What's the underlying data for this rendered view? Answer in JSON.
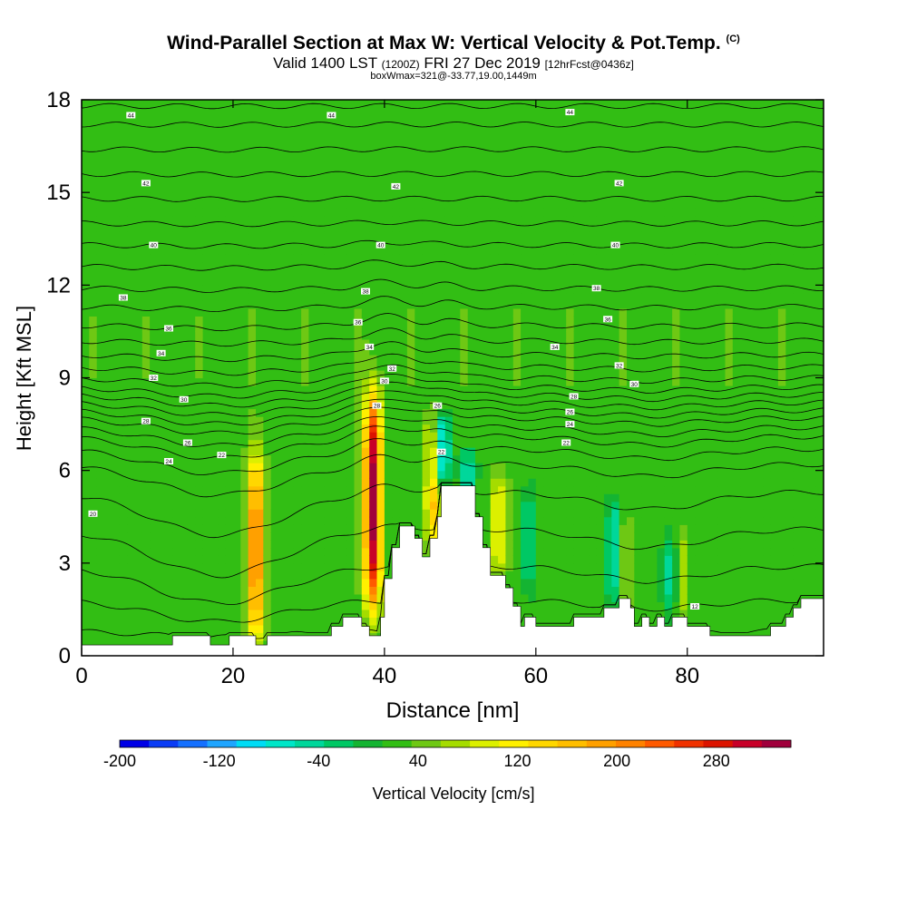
{
  "header": {
    "title": "Wind-Parallel Section at Max W: Vertical Velocity & Pot.Temp.",
    "copyright": "(C)",
    "valid_main": "Valid 1400 LST",
    "valid_utc": "(1200Z)",
    "valid_date": "FRI 27 Dec 2019",
    "forecast": "[12hrFcst@0436z]",
    "box_info": "boxWmax=321@-33.77,19.00,1449m"
  },
  "chart_data": {
    "type": "heatmap",
    "title": "Wind-Parallel Section at Max W: Vertical Velocity & Pot.Temp.",
    "xlabel": "Distance [nm]",
    "ylabel": "Height [Kft MSL]",
    "xlim": [
      0,
      98
    ],
    "ylim": [
      0,
      18
    ],
    "x_ticks": [
      0,
      20,
      40,
      60,
      80
    ],
    "y_ticks": [
      0,
      3,
      6,
      9,
      12,
      15,
      18
    ],
    "background_value": 25,
    "colorbar": {
      "label": "Vertical Velocity [cm/s]",
      "min": -200,
      "max": 340,
      "tick_values": [
        -200,
        -120,
        -40,
        40,
        120,
        200,
        280
      ],
      "colors": [
        "#0000e6",
        "#0a3cf5",
        "#1470ff",
        "#1ea5ff",
        "#00dcf5",
        "#00e6c8",
        "#00d79b",
        "#00c864",
        "#14b432",
        "#32be14",
        "#6ec814",
        "#a5dc00",
        "#dcf000",
        "#fff000",
        "#ffd700",
        "#ffbe00",
        "#ffa000",
        "#ff8200",
        "#ff5a00",
        "#f03200",
        "#dc1400",
        "#c80028",
        "#a0003c"
      ]
    },
    "updrafts": [
      {
        "x": 23,
        "y_bottom": 0.5,
        "y_top": 6.5,
        "peak": 210
      },
      {
        "x": 38.5,
        "y_bottom": 1.5,
        "y_top": 8.5,
        "peak": 321
      },
      {
        "x": 46.5,
        "y_bottom": 3.5,
        "y_top": 7.8,
        "peak": 160
      },
      {
        "x": 55,
        "y_bottom": 2.5,
        "y_top": 6.0,
        "peak": 110
      },
      {
        "x": 71.5,
        "y_bottom": 1.5,
        "y_top": 4.5,
        "peak": 100
      },
      {
        "x": 79,
        "y_bottom": 1.2,
        "y_top": 4.0,
        "peak": 95
      }
    ],
    "downdrafts": [
      {
        "x": 47.5,
        "y_bottom": 5.5,
        "y_top": 7.8,
        "peak": -120
      },
      {
        "x": 51,
        "y_bottom": 5.0,
        "y_top": 6.8,
        "peak": -60
      },
      {
        "x": 59,
        "y_bottom": 2.0,
        "y_top": 5.5,
        "peak": -35
      },
      {
        "x": 70.5,
        "y_bottom": 1.5,
        "y_top": 5.0,
        "peak": -80
      },
      {
        "x": 78,
        "y_bottom": 1.2,
        "y_top": 4.0,
        "peak": -70
      }
    ],
    "isentrope_levels": [
      {
        "base": 0.8,
        "dip": 0.2
      },
      {
        "base": 1.8,
        "dip": 0.7
      },
      {
        "base": 2.9,
        "dip": 1.2
      },
      {
        "base": 4.1,
        "dip": 1.5
      },
      {
        "base": 5.3,
        "dip": 1.4
      },
      {
        "base": 6.2,
        "dip": 1.0
      },
      {
        "base": 6.7,
        "dip": 0.8
      },
      {
        "base": 7.1,
        "dip": 0.7
      },
      {
        "base": 7.4,
        "dip": 0.6
      },
      {
        "base": 7.7,
        "dip": 0.5
      },
      {
        "base": 7.95,
        "dip": 0.45
      },
      {
        "base": 8.2,
        "dip": 0.4
      },
      {
        "base": 8.45,
        "dip": 0.35
      },
      {
        "base": 8.7,
        "dip": 0.3
      },
      {
        "base": 9.0,
        "dip": 0.25
      },
      {
        "base": 9.35,
        "dip": 0.2
      },
      {
        "base": 9.75,
        "dip": 0.15
      },
      {
        "base": 10.2,
        "dip": 0.1
      },
      {
        "base": 10.7,
        "dip": 0.1
      },
      {
        "base": 11.3,
        "dip": 0.08
      },
      {
        "base": 11.9,
        "dip": 0.06
      },
      {
        "base": 12.6,
        "dip": 0.05
      },
      {
        "base": 13.3,
        "dip": 0.04
      },
      {
        "base": 14.0,
        "dip": 0.03
      },
      {
        "base": 14.8,
        "dip": 0.02
      },
      {
        "base": 15.6,
        "dip": 0.02
      },
      {
        "base": 16.4,
        "dip": 0.02
      },
      {
        "base": 17.2,
        "dip": 0.01
      },
      {
        "base": 17.8,
        "dip": 0.01
      }
    ],
    "terrain": [
      [
        0,
        0.35
      ],
      [
        12,
        0.35
      ],
      [
        12,
        0.65
      ],
      [
        17,
        0.65
      ],
      [
        17,
        0.35
      ],
      [
        19.5,
        0.35
      ],
      [
        19.5,
        0.65
      ],
      [
        23,
        0.65
      ],
      [
        23,
        0.35
      ],
      [
        24.5,
        0.35
      ],
      [
        24.5,
        0.65
      ],
      [
        33,
        0.65
      ],
      [
        33,
        0.95
      ],
      [
        34.5,
        0.95
      ],
      [
        34.5,
        1.25
      ],
      [
        37,
        1.25
      ],
      [
        37,
        0.95
      ],
      [
        38,
        0.95
      ],
      [
        38,
        0.65
      ],
      [
        39.5,
        0.65
      ],
      [
        39.5,
        1.25
      ],
      [
        40,
        1.25
      ],
      [
        40,
        2.5
      ],
      [
        41,
        2.5
      ],
      [
        41,
        3.5
      ],
      [
        42,
        3.5
      ],
      [
        42,
        4.2
      ],
      [
        44,
        4.2
      ],
      [
        44,
        3.8
      ],
      [
        45,
        3.8
      ],
      [
        45,
        3.2
      ],
      [
        46,
        3.2
      ],
      [
        46,
        3.8
      ],
      [
        47,
        3.8
      ],
      [
        47,
        4.5
      ],
      [
        47.5,
        4.5
      ],
      [
        47.5,
        5.5
      ],
      [
        52,
        5.5
      ],
      [
        52,
        4.5
      ],
      [
        53,
        4.5
      ],
      [
        53,
        3.5
      ],
      [
        54,
        3.5
      ],
      [
        54,
        2.6
      ],
      [
        56,
        2.6
      ],
      [
        56,
        2.2
      ],
      [
        57,
        2.2
      ],
      [
        57,
        1.6
      ],
      [
        58,
        1.6
      ],
      [
        58,
        0.95
      ],
      [
        58.5,
        0.95
      ],
      [
        58.5,
        1.25
      ],
      [
        60,
        1.25
      ],
      [
        60,
        0.95
      ],
      [
        65,
        0.95
      ],
      [
        65,
        1.25
      ],
      [
        69,
        1.25
      ],
      [
        69,
        1.55
      ],
      [
        71,
        1.55
      ],
      [
        71,
        1.85
      ],
      [
        72.5,
        1.85
      ],
      [
        72.5,
        1.55
      ],
      [
        73,
        1.55
      ],
      [
        73,
        0.95
      ],
      [
        74,
        0.95
      ],
      [
        74,
        1.25
      ],
      [
        75,
        1.25
      ],
      [
        75,
        0.95
      ],
      [
        76,
        0.95
      ],
      [
        76,
        1.25
      ],
      [
        77,
        1.25
      ],
      [
        77,
        0.95
      ],
      [
        78,
        0.95
      ],
      [
        78,
        1.25
      ],
      [
        80,
        1.25
      ],
      [
        80,
        0.95
      ],
      [
        83,
        0.95
      ],
      [
        83,
        0.65
      ],
      [
        91,
        0.65
      ],
      [
        91,
        0.95
      ],
      [
        93,
        0.95
      ],
      [
        93,
        1.25
      ],
      [
        94,
        1.25
      ],
      [
        94,
        1.55
      ],
      [
        95,
        1.55
      ],
      [
        95,
        1.85
      ],
      [
        98,
        1.85
      ]
    ],
    "contour_labels": [
      {
        "text": "44",
        "x": 6.5,
        "y": 17.5
      },
      {
        "text": "44",
        "x": 33,
        "y": 17.5
      },
      {
        "text": "44",
        "x": 64.5,
        "y": 17.6
      },
      {
        "text": "42",
        "x": 8.5,
        "y": 15.3
      },
      {
        "text": "42",
        "x": 41.5,
        "y": 15.2
      },
      {
        "text": "42",
        "x": 71,
        "y": 15.3
      },
      {
        "text": "40",
        "x": 9.5,
        "y": 13.3
      },
      {
        "text": "40",
        "x": 39.5,
        "y": 13.3
      },
      {
        "text": "40",
        "x": 70.5,
        "y": 13.3
      },
      {
        "text": "38",
        "x": 5.5,
        "y": 11.6
      },
      {
        "text": "38",
        "x": 37.5,
        "y": 11.8
      },
      {
        "text": "38",
        "x": 68,
        "y": 11.9
      },
      {
        "text": "36",
        "x": 11.5,
        "y": 10.6
      },
      {
        "text": "36",
        "x": 36.5,
        "y": 10.8
      },
      {
        "text": "36",
        "x": 69.5,
        "y": 10.9
      },
      {
        "text": "34",
        "x": 10.5,
        "y": 9.8
      },
      {
        "text": "34",
        "x": 38,
        "y": 10.0
      },
      {
        "text": "34",
        "x": 62.5,
        "y": 10.0
      },
      {
        "text": "32",
        "x": 9.5,
        "y": 9.0
      },
      {
        "text": "32",
        "x": 41,
        "y": 9.3
      },
      {
        "text": "32",
        "x": 71,
        "y": 9.4
      },
      {
        "text": "30",
        "x": 13.5,
        "y": 8.3
      },
      {
        "text": "30",
        "x": 40,
        "y": 8.9
      },
      {
        "text": "30",
        "x": 73,
        "y": 8.8
      },
      {
        "text": "28",
        "x": 8.5,
        "y": 7.6
      },
      {
        "text": "28",
        "x": 39,
        "y": 8.1
      },
      {
        "text": "28",
        "x": 65,
        "y": 8.4
      },
      {
        "text": "26",
        "x": 14,
        "y": 6.9
      },
      {
        "text": "26",
        "x": 47,
        "y": 8.1
      },
      {
        "text": "26",
        "x": 64.5,
        "y": 7.9
      },
      {
        "text": "24",
        "x": 11.5,
        "y": 6.3
      },
      {
        "text": "24",
        "x": 64.5,
        "y": 7.5
      },
      {
        "text": "22",
        "x": 18.5,
        "y": 6.5
      },
      {
        "text": "22",
        "x": 47.5,
        "y": 6.6
      },
      {
        "text": "22",
        "x": 64,
        "y": 6.9
      },
      {
        "text": "20",
        "x": 1.5,
        "y": 4.6
      },
      {
        "text": "12",
        "x": 81,
        "y": 1.6
      }
    ]
  }
}
